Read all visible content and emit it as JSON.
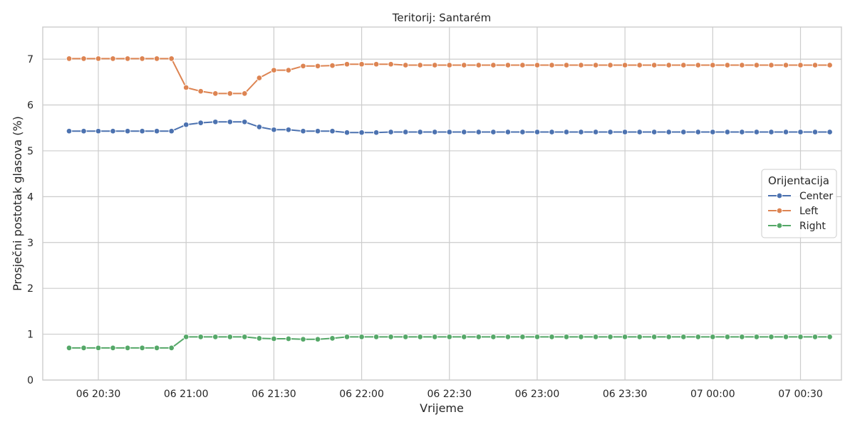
{
  "chart_data": {
    "type": "line",
    "title": "Teritorij: Santarém",
    "xlabel": "Vrijeme",
    "ylabel": "Prosječni postotak glasova (%)",
    "x_start": "2024-10-06 20:20",
    "x_step_minutes": 5,
    "xlim": [
      "2024-10-06 20:11",
      "2024-10-07 00:44"
    ],
    "ylim": [
      0,
      7.7
    ],
    "y_ticks": [
      0,
      1,
      2,
      3,
      4,
      5,
      6,
      7
    ],
    "x_ticks": [
      {
        "time": "2024-10-06 20:30",
        "label": "06 20:30"
      },
      {
        "time": "2024-10-06 21:00",
        "label": "06 21:00"
      },
      {
        "time": "2024-10-06 21:30",
        "label": "06 21:30"
      },
      {
        "time": "2024-10-06 22:00",
        "label": "06 22:00"
      },
      {
        "time": "2024-10-06 22:30",
        "label": "06 22:30"
      },
      {
        "time": "2024-10-06 23:00",
        "label": "06 23:00"
      },
      {
        "time": "2024-10-06 23:30",
        "label": "06 23:30"
      },
      {
        "time": "2024-10-07 00:00",
        "label": "07 00:00"
      },
      {
        "time": "2024-10-07 00:30",
        "label": "07 00:30"
      }
    ],
    "grid": true,
    "legend": {
      "title": "Orijentacija",
      "placement": "right"
    },
    "series": [
      {
        "name": "Center",
        "color": "#4c72b0",
        "values": [
          5.43,
          5.43,
          5.43,
          5.43,
          5.43,
          5.43,
          5.43,
          5.43,
          5.57,
          5.61,
          5.63,
          5.63,
          5.63,
          5.52,
          5.46,
          5.46,
          5.43,
          5.43,
          5.43,
          5.4,
          5.4,
          5.4,
          5.41,
          5.41,
          5.41,
          5.41,
          5.41,
          5.41,
          5.41,
          5.41,
          5.41,
          5.41,
          5.41,
          5.41,
          5.41,
          5.41,
          5.41,
          5.41,
          5.41,
          5.41,
          5.41,
          5.41,
          5.41,
          5.41,
          5.41,
          5.41,
          5.41,
          5.41,
          5.41,
          5.41,
          5.41,
          5.41,
          5.41
        ]
      },
      {
        "name": "Left",
        "color": "#dd8452",
        "values": [
          7.01,
          7.01,
          7.01,
          7.01,
          7.01,
          7.01,
          7.01,
          7.01,
          6.38,
          6.3,
          6.25,
          6.25,
          6.25,
          6.59,
          6.76,
          6.76,
          6.85,
          6.85,
          6.86,
          6.89,
          6.89,
          6.89,
          6.89,
          6.87,
          6.87,
          6.87,
          6.87,
          6.87,
          6.87,
          6.87,
          6.87,
          6.87,
          6.87,
          6.87,
          6.87,
          6.87,
          6.87,
          6.87,
          6.87,
          6.87,
          6.87,
          6.87,
          6.87,
          6.87,
          6.87,
          6.87,
          6.87,
          6.87,
          6.87,
          6.87,
          6.87,
          6.87,
          6.87
        ]
      },
      {
        "name": "Right",
        "color": "#55a868",
        "values": [
          0.7,
          0.7,
          0.7,
          0.7,
          0.7,
          0.7,
          0.7,
          0.7,
          0.94,
          0.94,
          0.94,
          0.94,
          0.94,
          0.91,
          0.9,
          0.9,
          0.89,
          0.89,
          0.91,
          0.94,
          0.94,
          0.94,
          0.94,
          0.94,
          0.94,
          0.94,
          0.94,
          0.94,
          0.94,
          0.94,
          0.94,
          0.94,
          0.94,
          0.94,
          0.94,
          0.94,
          0.94,
          0.94,
          0.94,
          0.94,
          0.94,
          0.94,
          0.94,
          0.94,
          0.94,
          0.94,
          0.94,
          0.94,
          0.94,
          0.94,
          0.94,
          0.94,
          0.94
        ]
      }
    ]
  }
}
